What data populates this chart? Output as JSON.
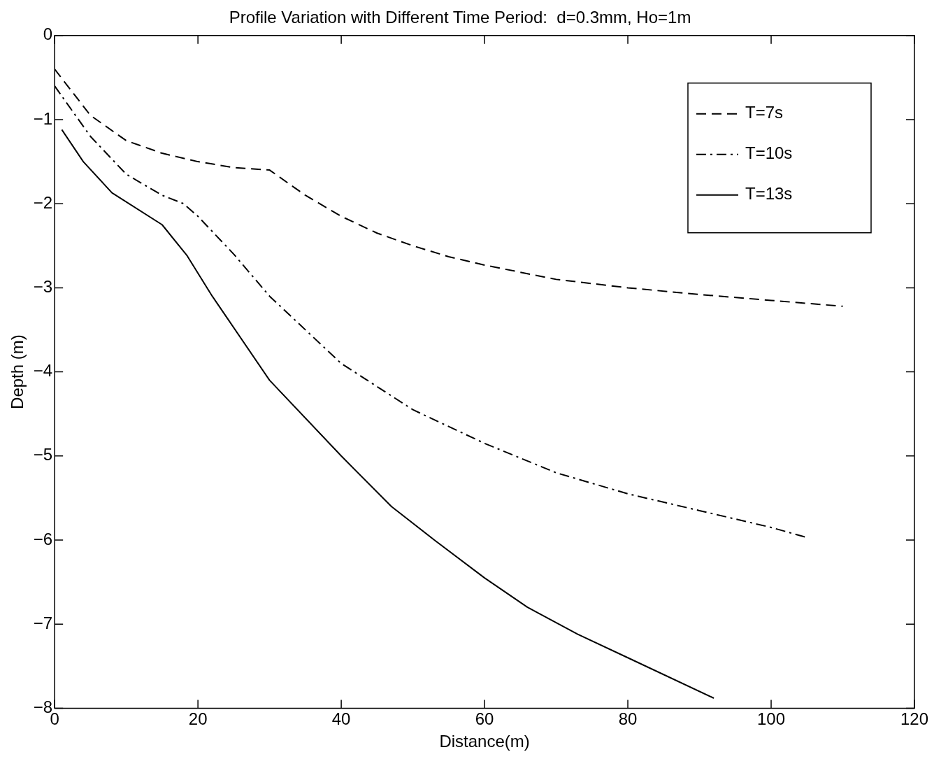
{
  "chart_data": {
    "type": "line",
    "title": "Profile Variation with Different Time Period:  d=0.3mm, Ho=1m",
    "xlabel": "Distance(m)",
    "ylabel": "Depth (m)",
    "xlim": [
      0,
      120
    ],
    "xticks": [
      0,
      20,
      40,
      60,
      80,
      100,
      120
    ],
    "ylim": [
      -8,
      0
    ],
    "yticks": [
      -8,
      -7,
      -6,
      -5,
      -4,
      -3,
      -2,
      -1,
      0
    ],
    "grid": false,
    "legend": "top right",
    "marker": "none",
    "series": [
      {
        "name": "T=7s",
        "color": "#000000",
        "line_style": "dashed",
        "x": [
          0,
          5,
          10,
          15,
          20,
          25,
          30,
          35,
          40,
          45,
          50,
          55,
          60,
          70,
          80,
          90,
          100,
          110
        ],
        "values": [
          -0.4,
          -0.95,
          -1.25,
          -1.4,
          -1.5,
          -1.57,
          -1.6,
          -1.9,
          -2.15,
          -2.35,
          -2.5,
          -2.63,
          -2.73,
          -2.9,
          -3.0,
          -3.08,
          -3.15,
          -3.22
        ]
      },
      {
        "name": "T=10s",
        "color": "#000000",
        "line_style": "dashdot",
        "x": [
          0,
          5,
          10,
          15,
          18,
          20,
          25,
          30,
          40,
          50,
          60,
          70,
          80,
          90,
          100,
          105
        ],
        "values": [
          -0.6,
          -1.2,
          -1.65,
          -1.9,
          -2.0,
          -2.15,
          -2.6,
          -3.1,
          -3.9,
          -4.45,
          -4.85,
          -5.2,
          -5.45,
          -5.65,
          -5.85,
          -5.97
        ]
      },
      {
        "name": "T=13s",
        "color": "#000000",
        "line_style": "solid",
        "x": [
          1,
          4,
          8,
          15,
          18.5,
          22,
          30,
          40,
          47,
          53,
          60,
          66,
          73,
          80,
          92
        ],
        "values": [
          -1.12,
          -1.5,
          -1.87,
          -2.25,
          -2.62,
          -3.1,
          -4.1,
          -5.0,
          -5.6,
          -6.0,
          -6.45,
          -6.8,
          -7.12,
          -7.4,
          -7.88
        ]
      }
    ]
  }
}
